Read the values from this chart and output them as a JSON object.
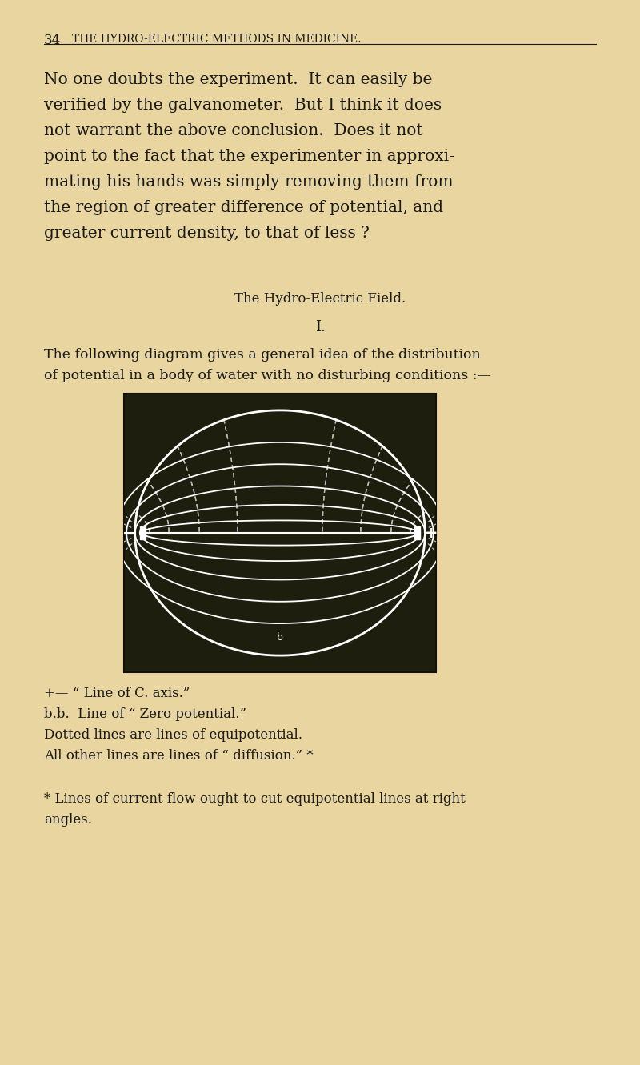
{
  "bg_color": "#e8d5a0",
  "dark_bg": "#1e1e0e",
  "page_number": "34",
  "header": "THE HYDRO-ELECTRIC METHODS IN MEDICINE.",
  "para_lines": [
    "No one doubts the experiment.  It can easily be",
    "verified by the galvanometer.  But I think it does",
    "not warrant the above conclusion.  Does it not",
    "point to the fact that the experimenter in approxi-",
    "mating his hands was simply removing them from",
    "the region of greater difference of potential, and",
    "greater current density, to that of less ?"
  ],
  "section_title": "The Hydro-Electric Field.",
  "section_number": "I.",
  "cap_lines": [
    "The following diagram gives a general idea of the distribution",
    "of potential in a body of water with no disturbing conditions :—"
  ],
  "legend_lines": [
    "+— “ Line of C. axis.”",
    "b.b.  Line of “ Zero potential.”",
    "Dotted lines are lines of equipotential.",
    "All other lines are lines of “ diffusion.” *"
  ],
  "footnote_lines": [
    "* Lines of current flow ought to cut equipotential lines at right",
    "angles."
  ],
  "text_color": "#1a1a1a",
  "white": "#ffffff",
  "dashed_color": "#bbbbbb"
}
